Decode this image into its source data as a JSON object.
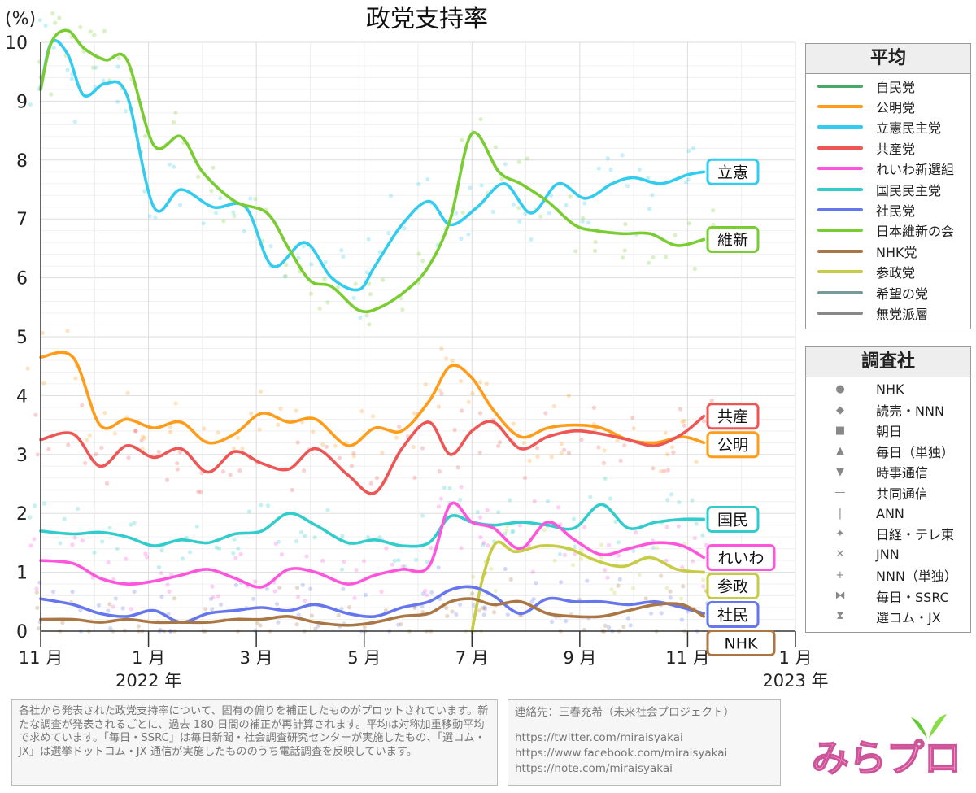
{
  "chart_data": {
    "type": "line",
    "title": "政党支持率",
    "ylabel": "(%)",
    "ylim": [
      0,
      10
    ],
    "yticks": [
      0,
      1,
      2,
      3,
      4,
      5,
      6,
      7,
      8,
      9,
      10
    ],
    "xlim": [
      0,
      14
    ],
    "x_ticks": [
      {
        "x": 0,
        "label": "11 月"
      },
      {
        "x": 2,
        "label": "1 月"
      },
      {
        "x": 4,
        "label": "3 月"
      },
      {
        "x": 6,
        "label": "5 月"
      },
      {
        "x": 8,
        "label": "7 月"
      },
      {
        "x": 10,
        "label": "9 月"
      },
      {
        "x": 12,
        "label": "11 月"
      },
      {
        "x": 14,
        "label": "1 月"
      }
    ],
    "year_labels": [
      {
        "x": 2,
        "label": "2022 年"
      },
      {
        "x": 14,
        "label": "2023 年"
      }
    ],
    "series": [
      {
        "name": "立憲民主党",
        "color": "#33ccee",
        "tag": "立憲",
        "x": [
          0,
          0.2,
          0.5,
          0.8,
          1.2,
          1.6,
          2.1,
          2.6,
          3.2,
          3.8,
          4.3,
          4.9,
          5.4,
          5.9,
          6.2,
          6.7,
          7.2,
          7.6,
          8.1,
          8.6,
          9.1,
          9.6,
          10.1,
          10.6,
          11.0,
          11.5,
          12.0,
          12.3
        ],
        "values": [
          9.2,
          10.0,
          9.8,
          9.1,
          9.3,
          9.1,
          7.2,
          7.5,
          7.2,
          7.2,
          6.2,
          6.6,
          6.0,
          5.8,
          6.2,
          6.9,
          7.3,
          6.9,
          7.2,
          7.6,
          7.1,
          7.6,
          7.35,
          7.6,
          7.7,
          7.6,
          7.75,
          7.8
        ]
      },
      {
        "name": "日本維新の会",
        "color": "#7acc33",
        "tag": "維新",
        "x": [
          0,
          0.2,
          0.5,
          0.8,
          1.2,
          1.6,
          2.1,
          2.6,
          3.0,
          3.6,
          4.2,
          4.6,
          5.0,
          5.4,
          5.9,
          6.3,
          6.8,
          7.2,
          7.6,
          8.0,
          8.5,
          8.9,
          9.4,
          9.9,
          10.3,
          10.8,
          11.3,
          11.8,
          12.3
        ],
        "values": [
          9.2,
          10.0,
          10.2,
          9.9,
          9.7,
          9.7,
          8.25,
          8.4,
          7.8,
          7.3,
          7.1,
          6.5,
          5.95,
          5.85,
          5.45,
          5.5,
          5.8,
          6.2,
          7.0,
          8.45,
          7.8,
          7.6,
          7.3,
          6.9,
          6.8,
          6.75,
          6.75,
          6.55,
          6.65
        ]
      },
      {
        "name": "公明党",
        "color": "#ff9c1a",
        "tag": "公明",
        "x": [
          0,
          0.6,
          1.1,
          1.6,
          2.1,
          2.6,
          3.1,
          3.6,
          4.1,
          4.6,
          5.1,
          5.7,
          6.2,
          6.7,
          7.2,
          7.6,
          8.0,
          8.4,
          8.9,
          9.4,
          9.9,
          10.4,
          10.9,
          11.4,
          11.9,
          12.3
        ],
        "values": [
          4.65,
          4.65,
          3.5,
          3.6,
          3.45,
          3.55,
          3.2,
          3.35,
          3.7,
          3.55,
          3.6,
          3.15,
          3.45,
          3.4,
          3.9,
          4.5,
          4.3,
          3.75,
          3.3,
          3.45,
          3.5,
          3.45,
          3.25,
          3.2,
          3.3,
          3.2
        ]
      },
      {
        "name": "共産党",
        "color": "#ee5555",
        "tag": "共産",
        "x": [
          0,
          0.6,
          1.1,
          1.6,
          2.1,
          2.6,
          3.1,
          3.6,
          4.1,
          4.6,
          5.1,
          5.7,
          6.2,
          6.7,
          7.2,
          7.6,
          8.0,
          8.4,
          8.9,
          9.4,
          9.9,
          10.4,
          10.9,
          11.4,
          11.9,
          12.3
        ],
        "values": [
          3.25,
          3.35,
          2.8,
          3.15,
          2.95,
          3.1,
          2.7,
          3.05,
          2.85,
          2.75,
          3.1,
          2.65,
          2.35,
          3.1,
          3.55,
          3.0,
          3.4,
          3.55,
          3.1,
          3.3,
          3.4,
          3.35,
          3.25,
          3.15,
          3.35,
          3.65
        ]
      },
      {
        "name": "国民民主党",
        "color": "#33cccc",
        "tag": "国民",
        "x": [
          0,
          0.6,
          1.1,
          1.6,
          2.1,
          2.6,
          3.1,
          3.6,
          4.1,
          4.6,
          5.1,
          5.7,
          6.2,
          6.7,
          7.2,
          7.6,
          8.0,
          8.4,
          8.9,
          9.4,
          9.9,
          10.4,
          10.9,
          11.4,
          11.9,
          12.3
        ],
        "values": [
          1.7,
          1.65,
          1.68,
          1.6,
          1.45,
          1.55,
          1.5,
          1.65,
          1.7,
          2.0,
          1.8,
          1.5,
          1.55,
          1.45,
          1.5,
          1.95,
          1.85,
          1.8,
          1.85,
          1.8,
          1.75,
          2.15,
          1.75,
          1.85,
          1.9,
          1.9
        ]
      },
      {
        "name": "れいわ新選組",
        "color": "#ff55dd",
        "tag": "れいわ",
        "x": [
          0,
          0.6,
          1.1,
          1.6,
          2.1,
          2.6,
          3.1,
          3.6,
          4.1,
          4.6,
          5.1,
          5.7,
          6.2,
          6.7,
          7.2,
          7.6,
          8.0,
          8.4,
          8.9,
          9.4,
          9.9,
          10.4,
          10.9,
          11.4,
          11.9,
          12.3
        ],
        "values": [
          1.2,
          1.15,
          0.9,
          0.8,
          0.85,
          0.95,
          1.05,
          0.9,
          0.75,
          1.05,
          1.0,
          0.8,
          0.95,
          1.05,
          1.1,
          2.15,
          1.85,
          1.75,
          1.4,
          1.85,
          1.55,
          1.3,
          1.4,
          1.5,
          1.45,
          1.25
        ]
      },
      {
        "name": "参政党",
        "color": "#c6cc44",
        "tag": "参政",
        "x": [
          8.0,
          8.2,
          8.45,
          8.8,
          9.3,
          9.8,
          10.3,
          10.8,
          11.3,
          11.8,
          12.3
        ],
        "values": [
          0.0,
          0.9,
          1.5,
          1.35,
          1.45,
          1.4,
          1.2,
          1.1,
          1.25,
          1.05,
          1.0
        ]
      },
      {
        "name": "社民党",
        "color": "#6677ee",
        "tag": "社民",
        "x": [
          0,
          0.6,
          1.1,
          1.6,
          2.1,
          2.6,
          3.1,
          3.6,
          4.1,
          4.6,
          5.1,
          5.7,
          6.2,
          6.7,
          7.2,
          7.6,
          8.0,
          8.4,
          8.9,
          9.4,
          9.9,
          10.4,
          10.9,
          11.4,
          11.9,
          12.3
        ],
        "values": [
          0.55,
          0.45,
          0.3,
          0.25,
          0.35,
          0.15,
          0.3,
          0.35,
          0.4,
          0.35,
          0.45,
          0.3,
          0.25,
          0.4,
          0.5,
          0.7,
          0.75,
          0.6,
          0.3,
          0.55,
          0.5,
          0.5,
          0.45,
          0.5,
          0.4,
          0.3
        ]
      },
      {
        "name": "NHK党",
        "color": "#aa7744",
        "tag": "NHK",
        "x": [
          0,
          0.6,
          1.1,
          1.6,
          2.1,
          2.6,
          3.1,
          3.6,
          4.1,
          4.6,
          5.1,
          5.7,
          6.2,
          6.7,
          7.2,
          7.6,
          8.0,
          8.4,
          8.9,
          9.4,
          9.9,
          10.4,
          10.9,
          11.4,
          11.9,
          12.3
        ],
        "values": [
          0.2,
          0.2,
          0.15,
          0.2,
          0.15,
          0.15,
          0.15,
          0.2,
          0.2,
          0.25,
          0.15,
          0.1,
          0.15,
          0.25,
          0.3,
          0.5,
          0.55,
          0.45,
          0.5,
          0.3,
          0.25,
          0.25,
          0.35,
          0.45,
          0.45,
          0.25
        ]
      }
    ]
  },
  "legend_average": {
    "title": "平均",
    "items": [
      {
        "label": "自民党",
        "color": "#44aa66"
      },
      {
        "label": "公明党",
        "color": "#ff9c1a"
      },
      {
        "label": "立憲民主党",
        "color": "#33ccee"
      },
      {
        "label": "共産党",
        "color": "#ee5555"
      },
      {
        "label": "れいわ新選組",
        "color": "#ff55dd"
      },
      {
        "label": "国民民主党",
        "color": "#33cccc"
      },
      {
        "label": "社民党",
        "color": "#6677ee"
      },
      {
        "label": "日本維新の会",
        "color": "#7acc33"
      },
      {
        "label": "NHK党",
        "color": "#aa7744"
      },
      {
        "label": "参政党",
        "color": "#c6cc44"
      },
      {
        "label": "希望の党",
        "color": "#779999"
      },
      {
        "label": "無党派層",
        "color": "#888888"
      }
    ]
  },
  "legend_pollster": {
    "title": "調査社",
    "items": [
      {
        "label": "NHK",
        "marker": "●"
      },
      {
        "label": "読売・NNN",
        "marker": "◆"
      },
      {
        "label": "朝日",
        "marker": "■"
      },
      {
        "label": "毎日（単独）",
        "marker": "▲"
      },
      {
        "label": "時事通信",
        "marker": "▼"
      },
      {
        "label": "共同通信",
        "marker": "—"
      },
      {
        "label": "ANN",
        "marker": "|"
      },
      {
        "label": "日経・テレ東",
        "marker": "✦"
      },
      {
        "label": "JNN",
        "marker": "✕"
      },
      {
        "label": "NNN（単独）",
        "marker": "+"
      },
      {
        "label": "毎日・SSRC",
        "marker": "⧓"
      },
      {
        "label": "選コム・JX",
        "marker": "⧗"
      }
    ]
  },
  "footer": {
    "note": "各社から発表された政党支持率について、固有の偏りを補正したものがプロットされています。新たな調査が発表されるごとに、過去 180 日間の補正が再計算されます。平均は対称加重移動平均で求めています。「毎日・SSRC」は毎日新聞・社会調査研究センターが実施したもの、「選コム・JX」は選挙ドットコム・JX 通信が実施したもののうち電話調査を反映しています。",
    "contact": "連絡先：三春充希（未来社会プロジェクト）",
    "links": [
      "https://twitter.com/miraisyakai",
      "https://www.facebook.com/miraisyakai",
      "https://note.com/miraisyakai"
    ],
    "logo_text": "みらプロ"
  }
}
